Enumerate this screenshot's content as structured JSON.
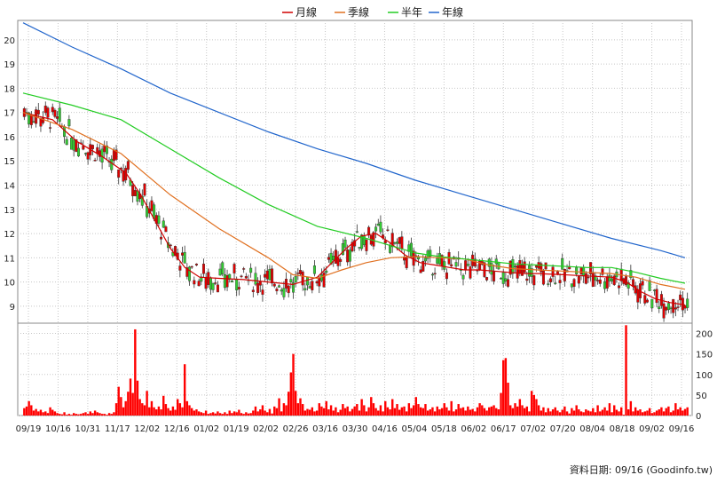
{
  "legend": [
    {
      "label": "月線",
      "color": "#d00000"
    },
    {
      "label": "季線",
      "color": "#e07020"
    },
    {
      "label": "半年",
      "color": "#22cc22"
    },
    {
      "label": "年線",
      "color": "#2266cc"
    }
  ],
  "footer": {
    "data_date": "資料日期: 09/16  (Goodinfo.tw)"
  },
  "chart_data": [
    {
      "type": "line",
      "title": "",
      "note": "candlestick price chart with moving averages",
      "ylim": [
        8.3,
        20.8
      ],
      "y_ticks": [
        9,
        10,
        11,
        12,
        13,
        14,
        15,
        16,
        17,
        18,
        19,
        20
      ],
      "x_tick_labels": [
        "09/19",
        "10/16",
        "10/31",
        "11/17",
        "12/02",
        "12/16",
        "01/02",
        "01/19",
        "02/02",
        "02/26",
        "03/16",
        "03/30",
        "04/16",
        "05/04",
        "05/18",
        "06/02",
        "06/17",
        "07/02",
        "07/20",
        "08/04",
        "08/18",
        "09/02",
        "09/16"
      ],
      "grid": true,
      "series": [
        {
          "name": "月線",
          "color": "#d00000",
          "values": [
            [
              0,
              17.0
            ],
            [
              12,
              16.7
            ],
            [
              22,
              15.8
            ],
            [
              32,
              15.2
            ],
            [
              42,
              14.5
            ],
            [
              48,
              13.6
            ],
            [
              54,
              12.5
            ],
            [
              60,
              11.4
            ],
            [
              66,
              10.6
            ],
            [
              72,
              10.2
            ],
            [
              80,
              10.15
            ],
            [
              90,
              10.1
            ],
            [
              100,
              10.0
            ],
            [
              110,
              9.9
            ],
            [
              120,
              10.2
            ],
            [
              126,
              10.8
            ],
            [
              132,
              11.4
            ],
            [
              138,
              11.9
            ],
            [
              144,
              12.0
            ],
            [
              150,
              11.6
            ],
            [
              156,
              11.1
            ],
            [
              162,
              10.8
            ],
            [
              168,
              10.7
            ],
            [
              174,
              10.6
            ],
            [
              180,
              10.5
            ],
            [
              186,
              10.5
            ],
            [
              192,
              10.45
            ],
            [
              198,
              10.4
            ],
            [
              204,
              10.35
            ],
            [
              210,
              10.35
            ],
            [
              220,
              10.3
            ],
            [
              230,
              10.25
            ],
            [
              240,
              10.2
            ],
            [
              246,
              10.0
            ],
            [
              252,
              9.6
            ],
            [
              258,
              9.3
            ],
            [
              264,
              9.15
            ],
            [
              270,
              9.05
            ]
          ]
        },
        {
          "name": "季線",
          "color": "#e07020",
          "values": [
            [
              0,
              17.0
            ],
            [
              20,
              16.3
            ],
            [
              40,
              15.3
            ],
            [
              60,
              13.6
            ],
            [
              80,
              12.2
            ],
            [
              100,
              11.0
            ],
            [
              110,
              10.3
            ],
            [
              120,
              10.15
            ],
            [
              130,
              10.5
            ],
            [
              140,
              10.8
            ],
            [
              150,
              11.0
            ],
            [
              160,
              11.05
            ],
            [
              170,
              11.0
            ],
            [
              180,
              10.95
            ],
            [
              190,
              10.7
            ],
            [
              200,
              10.55
            ],
            [
              210,
              10.5
            ],
            [
              220,
              10.45
            ],
            [
              230,
              10.4
            ],
            [
              240,
              10.35
            ],
            [
              250,
              10.2
            ],
            [
              260,
              9.9
            ],
            [
              270,
              9.7
            ]
          ]
        },
        {
          "name": "半年",
          "color": "#22cc22",
          "values": [
            [
              0,
              17.8
            ],
            [
              20,
              17.3
            ],
            [
              40,
              16.7
            ],
            [
              60,
              15.5
            ],
            [
              80,
              14.3
            ],
            [
              100,
              13.2
            ],
            [
              120,
              12.3
            ],
            [
              140,
              11.8
            ],
            [
              150,
              11.5
            ],
            [
              160,
              11.2
            ],
            [
              170,
              11.05
            ],
            [
              180,
              10.95
            ],
            [
              190,
              10.85
            ],
            [
              200,
              10.75
            ],
            [
              210,
              10.7
            ],
            [
              220,
              10.65
            ],
            [
              230,
              10.6
            ],
            [
              240,
              10.6
            ],
            [
              250,
              10.4
            ],
            [
              260,
              10.15
            ],
            [
              270,
              9.95
            ]
          ]
        },
        {
          "name": "年線",
          "color": "#2266cc",
          "values": [
            [
              0,
              20.7
            ],
            [
              20,
              19.7
            ],
            [
              40,
              18.8
            ],
            [
              60,
              17.8
            ],
            [
              80,
              17.0
            ],
            [
              100,
              16.2
            ],
            [
              120,
              15.5
            ],
            [
              140,
              14.9
            ],
            [
              160,
              14.2
            ],
            [
              180,
              13.6
            ],
            [
              200,
              13.0
            ],
            [
              220,
              12.4
            ],
            [
              240,
              11.8
            ],
            [
              260,
              11.3
            ],
            [
              270,
              11.0
            ]
          ]
        }
      ]
    },
    {
      "type": "bar",
      "title": "",
      "note": "daily trading volume",
      "ylim": [
        0,
        225
      ],
      "y_ticks": [
        0,
        50,
        100,
        150,
        200
      ],
      "x_tick_labels": [
        "09/19",
        "10/16",
        "10/31",
        "11/17",
        "12/02",
        "12/16",
        "01/02",
        "01/19",
        "02/02",
        "02/26",
        "03/16",
        "03/30",
        "04/16",
        "05/04",
        "05/18",
        "06/02",
        "06/17",
        "07/02",
        "07/20",
        "08/04",
        "08/18",
        "09/02",
        "09/16"
      ],
      "values": [
        18,
        22,
        35,
        25,
        12,
        16,
        10,
        14,
        8,
        10,
        6,
        20,
        14,
        10,
        6,
        4,
        3,
        8,
        2,
        4,
        2,
        6,
        4,
        3,
        4,
        6,
        8,
        4,
        10,
        6,
        12,
        8,
        6,
        4,
        4,
        2,
        6,
        4,
        8,
        30,
        70,
        45,
        20,
        35,
        58,
        90,
        55,
        210,
        85,
        40,
        30,
        25,
        60,
        20,
        35,
        20,
        15,
        22,
        15,
        48,
        28,
        18,
        12,
        22,
        14,
        40,
        30,
        20,
        125,
        35,
        25,
        18,
        12,
        15,
        10,
        8,
        6,
        12,
        4,
        6,
        8,
        5,
        10,
        6,
        4,
        8,
        4,
        12,
        6,
        10,
        8,
        14,
        6,
        4,
        8,
        5,
        6,
        12,
        22,
        10,
        15,
        25,
        12,
        8,
        16,
        5,
        22,
        18,
        42,
        10,
        30,
        25,
        58,
        105,
        150,
        60,
        30,
        42,
        28,
        12,
        16,
        14,
        20,
        10,
        12,
        30,
        22,
        18,
        35,
        15,
        25,
        12,
        20,
        8,
        14,
        28,
        18,
        22,
        10,
        16,
        22,
        28,
        12,
        40,
        25,
        10,
        20,
        45,
        30,
        18,
        12,
        25,
        10,
        35,
        20,
        15,
        40,
        18,
        28,
        14,
        20,
        22,
        10,
        30,
        18,
        25,
        45,
        28,
        20,
        18,
        28,
        12,
        15,
        20,
        10,
        22,
        15,
        18,
        30,
        20,
        12,
        35,
        10,
        15,
        28,
        18,
        20,
        12,
        22,
        14,
        16,
        10,
        20,
        30,
        25,
        18,
        12,
        20,
        22,
        25,
        18,
        15,
        55,
        135,
        140,
        80,
        25,
        18,
        30,
        22,
        40,
        25,
        18,
        22,
        10,
        60,
        50,
        40,
        25,
        12,
        20,
        8,
        18,
        10,
        15,
        20,
        12,
        8,
        14,
        22,
        10,
        5,
        18,
        12,
        25,
        15,
        10,
        8,
        15,
        12,
        10,
        18,
        8,
        25,
        10,
        14,
        20,
        12,
        30,
        8,
        25,
        14,
        10,
        20,
        2,
        220,
        15,
        35,
        10,
        20,
        12,
        15,
        8,
        10,
        12,
        18,
        6,
        8,
        12,
        15,
        20,
        10,
        18,
        22,
        8,
        12,
        30,
        15,
        20,
        12,
        16,
        20
      ]
    }
  ]
}
